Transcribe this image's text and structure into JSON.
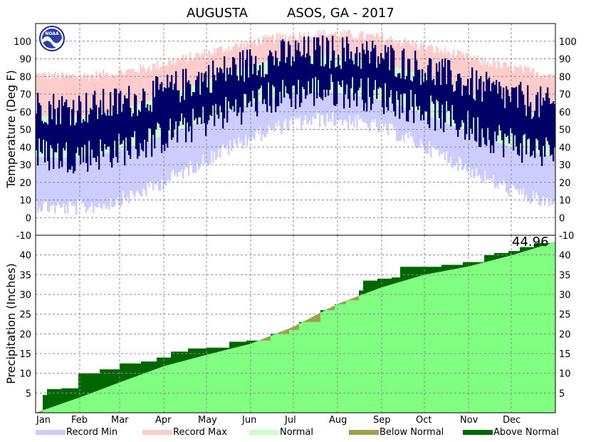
{
  "chart_data": [
    {
      "type": "area",
      "panel": "temperature",
      "title_station": "AUGUSTA",
      "title_network": "ASOS, GA - 2017",
      "ylabel": "Temperature (Deg F)",
      "ylim": [
        -10,
        110
      ],
      "yticks": [
        "-10",
        "0",
        "10",
        "20",
        "30",
        "40",
        "50",
        "60",
        "70",
        "80",
        "90",
        "100"
      ],
      "months": [
        "Jan",
        "Feb",
        "Mar",
        "Apr",
        "May",
        "Jun",
        "Jul",
        "Aug",
        "Sep",
        "Oct",
        "Nov",
        "Dec"
      ],
      "month_start_day": [
        1,
        32,
        60,
        91,
        121,
        152,
        182,
        213,
        244,
        274,
        305,
        335
      ],
      "days_in_year": 365,
      "grid": true,
      "normals": {
        "high_min": 57,
        "high_max": 92,
        "high_peak_day": 200,
        "low_min": 34,
        "low_max": 71,
        "low_peak_day": 200
      },
      "records": {
        "max_min": 80,
        "max_max": 104,
        "max_peak_day": 205,
        "min_min": 10,
        "min_max": 60,
        "min_peak_day": 205
      },
      "observed": {
        "high_min": 62,
        "high_max": 94,
        "high_peak_day": 205,
        "low_min": 35,
        "low_max": 72,
        "low_peak_day": 205
      },
      "colors": {
        "record_min": "#ccccff",
        "record_max": "#ffcccc",
        "normal": "#ccffcc",
        "observed": "#000066"
      },
      "noaa_logo_text": "NOAA"
    },
    {
      "type": "area",
      "panel": "precipitation",
      "ylabel": "Precipitation (Inches)",
      "ylim": [
        0,
        45
      ],
      "yticks": [
        "5",
        "10",
        "15",
        "20",
        "25",
        "30",
        "35",
        "40"
      ],
      "annual_total_label": "44.96",
      "normal_cumulative": {
        "days": [
          0,
          31,
          59,
          90,
          120,
          151,
          181,
          212,
          243,
          273,
          304,
          334,
          365
        ],
        "values": [
          0,
          3.9,
          7.7,
          11.8,
          14.7,
          17.5,
          21.8,
          27.6,
          31.8,
          35.0,
          37.1,
          39.9,
          43.3
        ]
      },
      "observed_cumulative": {
        "days": [
          0,
          5,
          8,
          18,
          30,
          45,
          59,
          74,
          85,
          95,
          107,
          120,
          136,
          148,
          165,
          178,
          185,
          200,
          210,
          218,
          227,
          230,
          240,
          250,
          256,
          266,
          274,
          285,
          300,
          315,
          322,
          332,
          340,
          350,
          365
        ],
        "values": [
          0,
          4.5,
          6.0,
          6.2,
          10.0,
          11.0,
          12.5,
          13.0,
          14.0,
          15.5,
          16.3,
          16.5,
          18.0,
          18.3,
          20.0,
          21.0,
          23.0,
          26.0,
          27.5,
          28.5,
          31.0,
          33.5,
          34.0,
          34.3,
          37.0,
          37.0,
          37.0,
          37.5,
          38.2,
          40.0,
          40.5,
          41.0,
          42.0,
          43.0,
          44.96
        ]
      },
      "colors": {
        "normal": "#80ff80",
        "above_normal": "#006600",
        "below_normal": "#a0a050"
      }
    }
  ],
  "legend": [
    {
      "label": "Record Min",
      "color": "#ccccff"
    },
    {
      "label": "Record Max",
      "color": "#ffcccc"
    },
    {
      "label": "Normal",
      "color": "#ccffcc"
    },
    {
      "label": "Below Normal",
      "color": "#a0a050"
    },
    {
      "label": "Above Normal",
      "color": "#006600"
    }
  ]
}
